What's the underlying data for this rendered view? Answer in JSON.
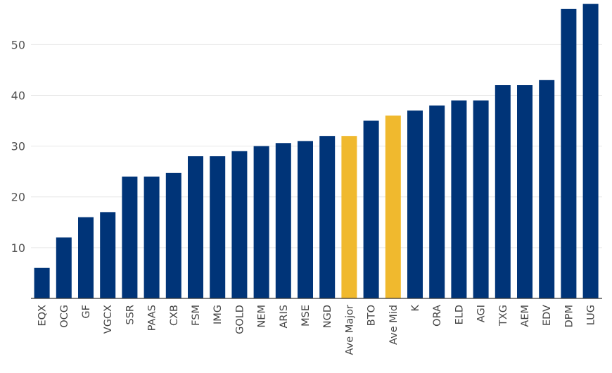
{
  "chart_data": {
    "type": "bar",
    "title": "",
    "xlabel": "",
    "ylabel": "",
    "ylim": [
      0,
      58.5
    ],
    "yticks": [
      10,
      20,
      30,
      40,
      50
    ],
    "grid": true,
    "legend": "none",
    "colors": {
      "default": "#003478",
      "highlight": "#f0b92e",
      "grid": "#e6e6e6",
      "axis": "#333333"
    },
    "categories": [
      "EQX",
      "OCG",
      "GF",
      "VGCX",
      "SSR",
      "PAAS",
      "CXB",
      "FSM",
      "IMG",
      "GOLD",
      "NEM",
      "ARIS",
      "MSE",
      "NGD",
      "Ave Major",
      "BTO",
      "Ave Mid",
      "K",
      "ORA",
      "ELD",
      "AGI",
      "TXG",
      "AEM",
      "EDV",
      "DPM",
      "LUG"
    ],
    "values": [
      6,
      12,
      16,
      17,
      24,
      24,
      24.7,
      28,
      28,
      29,
      30,
      30.6,
      31,
      32,
      32,
      35,
      36,
      37,
      38,
      39,
      39,
      42,
      42,
      43,
      57,
      58
    ],
    "highlighted": [
      "Ave Major",
      "Ave Mid"
    ]
  }
}
